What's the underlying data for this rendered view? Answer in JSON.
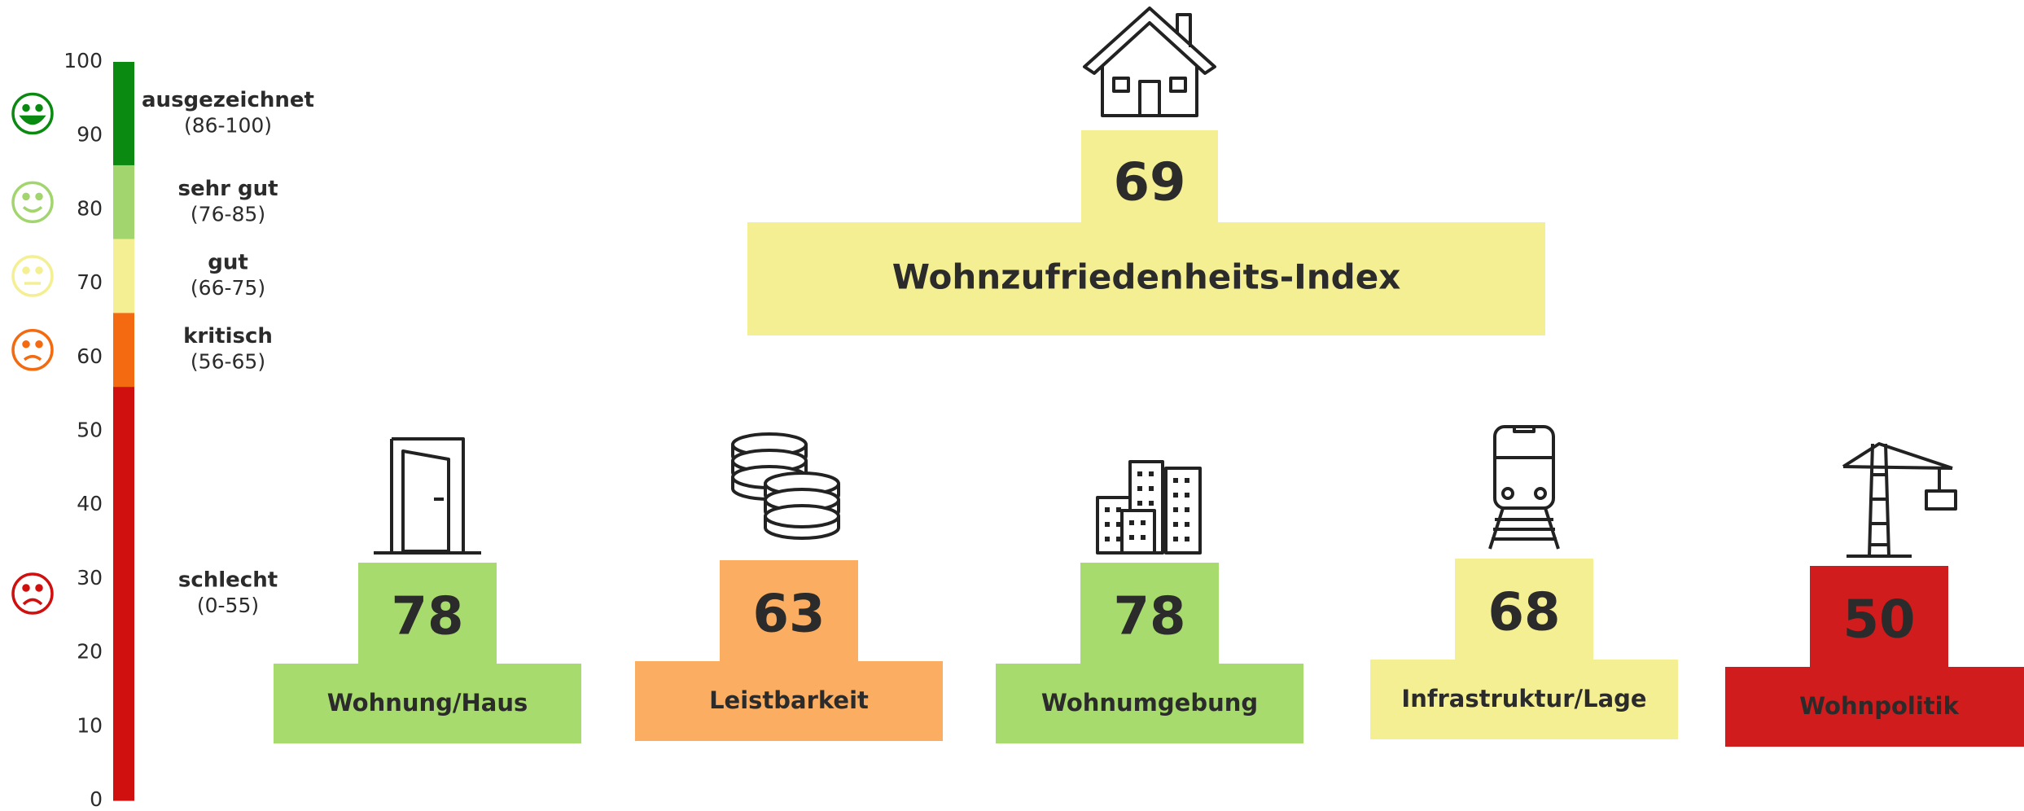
{
  "chart_data": {
    "type": "scorecard",
    "ylim": [
      0,
      100
    ],
    "yticks": [
      0,
      10,
      20,
      30,
      40,
      50,
      60,
      70,
      80,
      90,
      100
    ],
    "bands": [
      {
        "label": "ausgezeichnet",
        "range": "(86-100)",
        "min": 86,
        "color": "#0b8a12"
      },
      {
        "label": "sehr gut",
        "range": "(76-85)",
        "min": 76,
        "color": "#a3d56f"
      },
      {
        "label": "gut",
        "range": "(66-75)",
        "min": 66,
        "color": "#f5ef93"
      },
      {
        "label": "kritisch",
        "range": "(56-65)",
        "min": 56,
        "color": "#f46a10"
      },
      {
        "label": "schlecht",
        "range": "(0-55)",
        "min": 0,
        "color": "#d00f0f"
      }
    ],
    "index": {
      "title": "Wohnzufriedenheits-Index",
      "value": 69,
      "color": "#f5ef93"
    },
    "categories": [
      "Wohnung/Haus",
      "Leistbarkeit",
      "Wohnumgebung",
      "Infrastruktur/Lage",
      "Wohnpolitik"
    ],
    "values": [
      78,
      63,
      78,
      68,
      50
    ],
    "colors": [
      "#a8db6e",
      "#fbae62",
      "#a8db6e",
      "#f5ef93",
      "#d01c1c"
    ]
  }
}
